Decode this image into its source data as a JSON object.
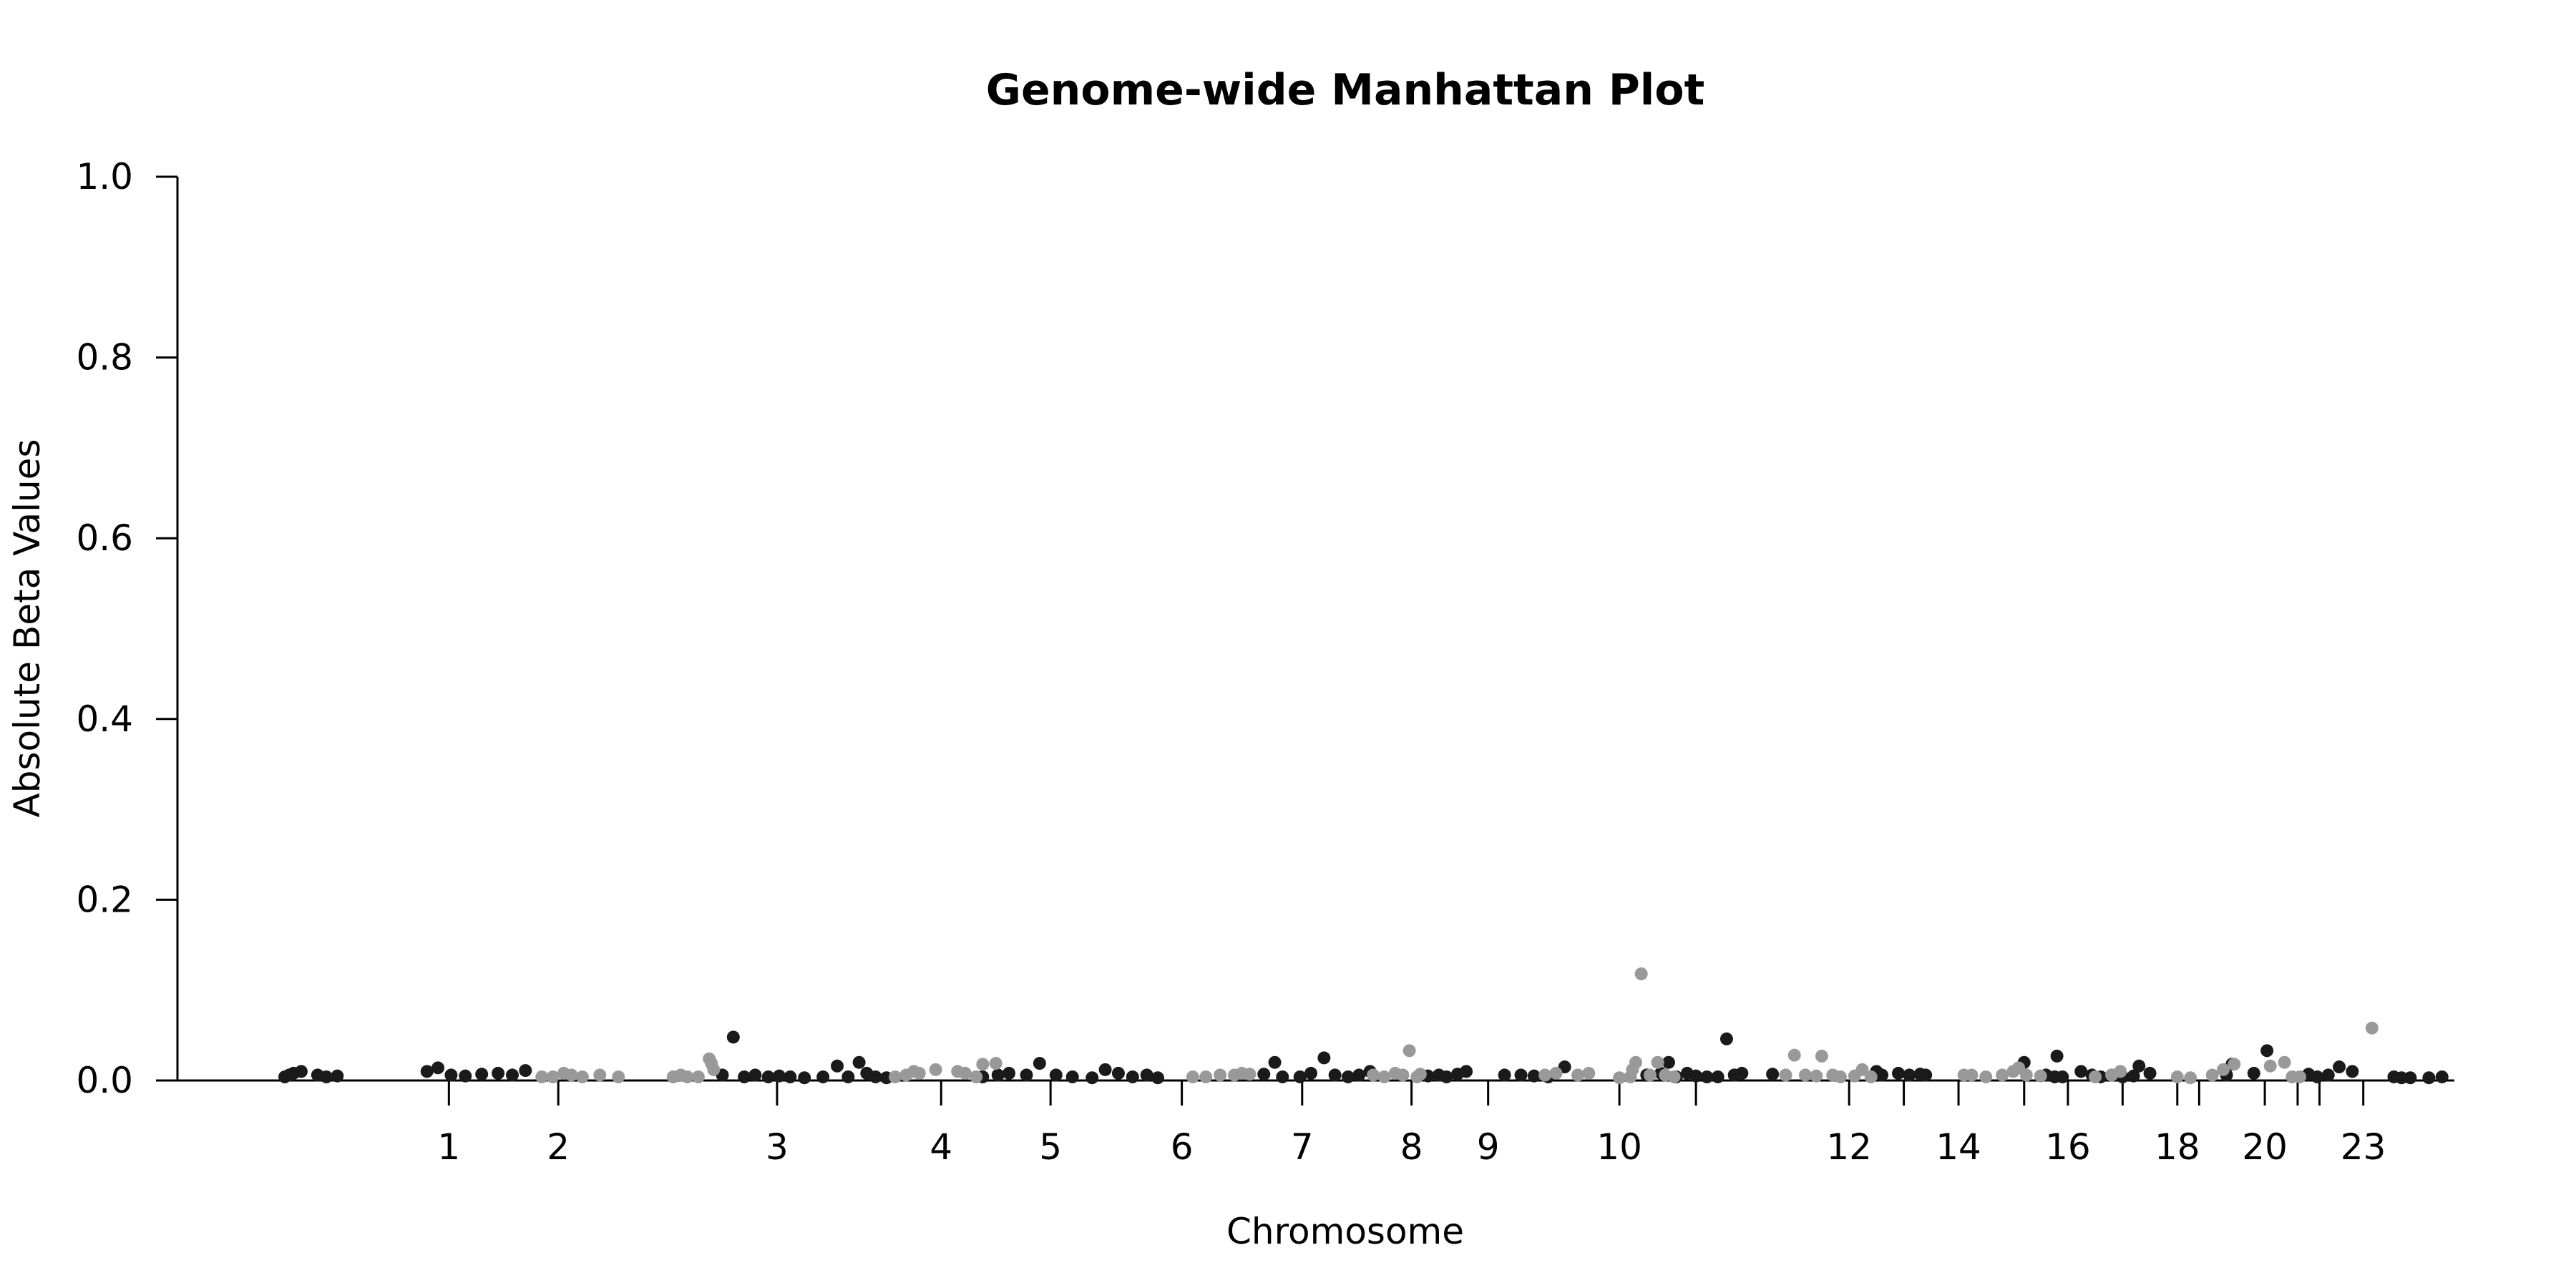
{
  "chart_data": {
    "type": "scatter",
    "title": "Genome-wide Manhattan Plot",
    "xlabel": "Chromosome",
    "ylabel": "Absolute Beta Values",
    "ylim": [
      0,
      1
    ],
    "yticks": [
      "0.0",
      "0.2",
      "0.4",
      "0.6",
      "0.8",
      "1.0"
    ],
    "grid": false,
    "legend": "none",
    "alternating_colors": [
      "#1a1a1a",
      "#999999"
    ],
    "xticks": [
      {
        "label": "1",
        "x": 1.5
      },
      {
        "label": "2",
        "x": 2.5
      },
      {
        "label": "3",
        "x": 4.5
      },
      {
        "label": "4",
        "x": 6.0
      },
      {
        "label": "5",
        "x": 7.0
      },
      {
        "label": "6",
        "x": 8.2
      },
      {
        "label": "7",
        "x": 9.3
      },
      {
        "label": "8",
        "x": 10.3
      },
      {
        "label": "9",
        "x": 11.0
      },
      {
        "label": "10",
        "x": 12.2
      },
      {
        "label": "",
        "x": 12.9
      },
      {
        "label": "12",
        "x": 14.3
      },
      {
        "label": "",
        "x": 14.8
      },
      {
        "label": "14",
        "x": 15.3
      },
      {
        "label": "",
        "x": 15.9
      },
      {
        "label": "16",
        "x": 16.3
      },
      {
        "label": "",
        "x": 16.8
      },
      {
        "label": "18",
        "x": 17.3
      },
      {
        "label": "",
        "x": 17.5
      },
      {
        "label": "20",
        "x": 18.1
      },
      {
        "label": "",
        "x": 18.4
      },
      {
        "label": "",
        "x": 18.6
      },
      {
        "label": "23",
        "x": 19.0
      }
    ],
    "series": [
      {
        "color": "#1a1a1a",
        "points": [
          [
            0.0,
            0.004
          ],
          [
            0.04,
            0.006
          ],
          [
            0.08,
            0.008
          ],
          [
            0.15,
            0.01
          ],
          [
            0.3,
            0.006
          ],
          [
            0.38,
            0.004
          ],
          [
            0.48,
            0.005
          ],
          [
            1.3,
            0.01
          ],
          [
            1.4,
            0.014
          ],
          [
            1.52,
            0.006
          ],
          [
            1.65,
            0.005
          ],
          [
            1.8,
            0.007
          ],
          [
            1.95,
            0.008
          ],
          [
            2.08,
            0.006
          ],
          [
            2.2,
            0.011
          ],
          [
            4.0,
            0.006
          ],
          [
            4.1,
            0.048
          ],
          [
            4.2,
            0.004
          ],
          [
            4.3,
            0.006
          ],
          [
            4.42,
            0.004
          ],
          [
            4.52,
            0.005
          ],
          [
            4.62,
            0.004
          ],
          [
            4.75,
            0.003
          ],
          [
            4.92,
            0.004
          ],
          [
            5.05,
            0.016
          ],
          [
            5.15,
            0.004
          ],
          [
            5.25,
            0.02
          ],
          [
            5.32,
            0.008
          ],
          [
            5.4,
            0.004
          ],
          [
            5.5,
            0.003
          ],
          [
            6.38,
            0.004
          ],
          [
            6.52,
            0.006
          ],
          [
            6.62,
            0.008
          ],
          [
            6.78,
            0.006
          ],
          [
            6.9,
            0.019
          ],
          [
            7.05,
            0.006
          ],
          [
            7.2,
            0.004
          ],
          [
            7.38,
            0.003
          ],
          [
            7.5,
            0.012
          ],
          [
            7.62,
            0.008
          ],
          [
            7.75,
            0.004
          ],
          [
            7.88,
            0.006
          ],
          [
            7.98,
            0.003
          ],
          [
            8.95,
            0.007
          ],
          [
            9.05,
            0.02
          ],
          [
            9.12,
            0.004
          ],
          [
            9.28,
            0.004
          ],
          [
            9.38,
            0.008
          ],
          [
            9.5,
            0.025
          ],
          [
            9.6,
            0.006
          ],
          [
            9.72,
            0.004
          ],
          [
            9.82,
            0.006
          ],
          [
            9.92,
            0.01
          ],
          [
            10.45,
            0.005
          ],
          [
            10.55,
            0.006
          ],
          [
            10.62,
            0.004
          ],
          [
            10.72,
            0.007
          ],
          [
            10.8,
            0.01
          ],
          [
            11.15,
            0.006
          ],
          [
            11.3,
            0.006
          ],
          [
            11.42,
            0.005
          ],
          [
            11.55,
            0.004
          ],
          [
            11.7,
            0.015
          ],
          [
            12.45,
            0.006
          ],
          [
            12.58,
            0.008
          ],
          [
            12.65,
            0.02
          ],
          [
            12.72,
            0.004
          ],
          [
            12.82,
            0.008
          ],
          [
            12.9,
            0.005
          ],
          [
            13.0,
            0.004
          ],
          [
            13.1,
            0.004
          ],
          [
            13.18,
            0.046
          ],
          [
            13.25,
            0.006
          ],
          [
            13.32,
            0.008
          ],
          [
            13.6,
            0.007
          ],
          [
            14.55,
            0.01
          ],
          [
            14.6,
            0.006
          ],
          [
            14.75,
            0.008
          ],
          [
            14.85,
            0.006
          ],
          [
            14.95,
            0.007
          ],
          [
            15.0,
            0.006
          ],
          [
            15.9,
            0.02
          ],
          [
            16.1,
            0.006
          ],
          [
            16.18,
            0.004
          ],
          [
            16.2,
            0.027
          ],
          [
            16.25,
            0.004
          ],
          [
            16.42,
            0.01
          ],
          [
            16.52,
            0.006
          ],
          [
            16.6,
            0.004
          ],
          [
            16.7,
            0.006
          ],
          [
            16.8,
            0.004
          ],
          [
            16.9,
            0.005
          ],
          [
            16.95,
            0.016
          ],
          [
            17.05,
            0.008
          ],
          [
            17.75,
            0.006
          ],
          [
            17.8,
            0.018
          ],
          [
            18.0,
            0.008
          ],
          [
            18.12,
            0.033
          ],
          [
            18.5,
            0.007
          ],
          [
            18.58,
            0.004
          ],
          [
            18.68,
            0.006
          ],
          [
            18.78,
            0.015
          ],
          [
            18.9,
            0.01
          ],
          [
            19.28,
            0.004
          ],
          [
            19.35,
            0.003
          ],
          [
            19.43,
            0.003
          ],
          [
            19.6,
            0.003
          ],
          [
            19.72,
            0.004
          ]
        ]
      },
      {
        "color": "#999999",
        "points": [
          [
            2.35,
            0.004
          ],
          [
            2.45,
            0.004
          ],
          [
            2.55,
            0.008
          ],
          [
            2.62,
            0.006
          ],
          [
            2.72,
            0.004
          ],
          [
            2.88,
            0.006
          ],
          [
            3.05,
            0.004
          ],
          [
            3.55,
            0.004
          ],
          [
            3.62,
            0.006
          ],
          [
            3.68,
            0.004
          ],
          [
            3.78,
            0.004
          ],
          [
            3.88,
            0.024
          ],
          [
            3.9,
            0.019
          ],
          [
            3.92,
            0.012
          ],
          [
            5.58,
            0.004
          ],
          [
            5.68,
            0.006
          ],
          [
            5.75,
            0.01
          ],
          [
            5.8,
            0.008
          ],
          [
            5.95,
            0.012
          ],
          [
            6.15,
            0.01
          ],
          [
            6.22,
            0.008
          ],
          [
            6.32,
            0.004
          ],
          [
            6.38,
            0.018
          ],
          [
            6.5,
            0.019
          ],
          [
            8.3,
            0.004
          ],
          [
            8.42,
            0.004
          ],
          [
            8.55,
            0.006
          ],
          [
            8.68,
            0.006
          ],
          [
            8.75,
            0.008
          ],
          [
            8.82,
            0.007
          ],
          [
            9.95,
            0.006
          ],
          [
            10.05,
            0.004
          ],
          [
            10.15,
            0.008
          ],
          [
            10.22,
            0.006
          ],
          [
            10.35,
            0.004
          ],
          [
            10.28,
            0.033
          ],
          [
            10.38,
            0.007
          ],
          [
            11.52,
            0.006
          ],
          [
            11.62,
            0.008
          ],
          [
            11.82,
            0.006
          ],
          [
            11.92,
            0.008
          ],
          [
            12.2,
            0.003
          ],
          [
            12.3,
            0.004
          ],
          [
            12.32,
            0.012
          ],
          [
            12.35,
            0.02
          ],
          [
            12.4,
            0.118
          ],
          [
            12.48,
            0.006
          ],
          [
            12.55,
            0.02
          ],
          [
            12.62,
            0.006
          ],
          [
            12.7,
            0.004
          ],
          [
            13.72,
            0.006
          ],
          [
            13.8,
            0.028
          ],
          [
            13.9,
            0.006
          ],
          [
            14.0,
            0.005
          ],
          [
            14.05,
            0.027
          ],
          [
            14.15,
            0.006
          ],
          [
            14.22,
            0.004
          ],
          [
            14.35,
            0.005
          ],
          [
            14.42,
            0.012
          ],
          [
            14.5,
            0.004
          ],
          [
            15.35,
            0.006
          ],
          [
            15.42,
            0.006
          ],
          [
            15.55,
            0.004
          ],
          [
            15.7,
            0.006
          ],
          [
            15.8,
            0.01
          ],
          [
            15.85,
            0.014
          ],
          [
            15.92,
            0.006
          ],
          [
            16.05,
            0.005
          ],
          [
            16.55,
            0.004
          ],
          [
            16.7,
            0.006
          ],
          [
            16.78,
            0.01
          ],
          [
            17.3,
            0.004
          ],
          [
            17.42,
            0.003
          ],
          [
            17.62,
            0.006
          ],
          [
            17.72,
            0.012
          ],
          [
            17.82,
            0.018
          ],
          [
            18.15,
            0.016
          ],
          [
            18.28,
            0.02
          ],
          [
            18.35,
            0.004
          ],
          [
            18.42,
            0.004
          ],
          [
            19.08,
            0.058
          ]
        ]
      }
    ]
  }
}
